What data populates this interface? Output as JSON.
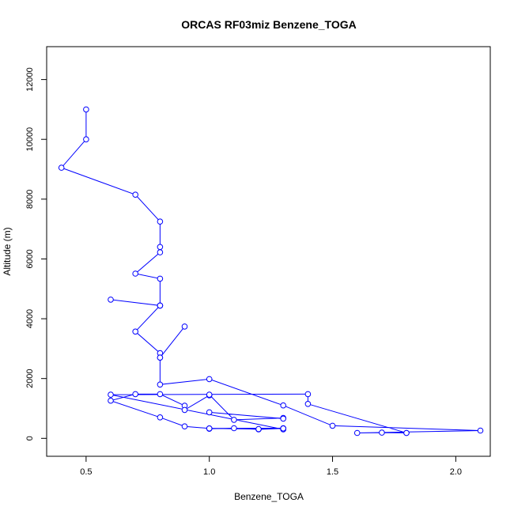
{
  "chart_data": {
    "type": "line",
    "title": "ORCAS RF03miz Benzene_TOGA",
    "xlabel": "Benzene_TOGA",
    "ylabel": "Altitude (m)",
    "xlim": [
      0.34,
      2.14
    ],
    "ylim": [
      -600,
      13100
    ],
    "x_ticks": [
      0.5,
      1.0,
      1.5,
      2.0
    ],
    "x_tick_labels": [
      "0.5",
      "1.0",
      "1.5",
      "2.0"
    ],
    "y_ticks": [
      0,
      2000,
      4000,
      6000,
      8000,
      10000,
      12000
    ],
    "y_tick_labels": [
      "0",
      "2000",
      "4000",
      "6000",
      "8000",
      "10000",
      "12000"
    ],
    "grid": false,
    "series_color": "#0000ff",
    "marker": "open-circle",
    "series": [
      {
        "x": [
          0.5,
          0.5,
          0.4,
          0.7,
          0.8,
          0.8,
          0.8,
          0.7,
          0.8,
          0.8,
          0.6,
          0.8,
          0.8,
          0.7,
          0.8,
          0.8,
          0.9,
          0.8,
          0.8,
          1.0,
          1.3,
          1.5,
          2.1,
          1.6,
          1.7,
          1.8,
          1.8,
          1.4,
          1.4,
          0.6,
          1.3,
          1.3,
          1.2,
          1.1,
          1.0,
          1.0,
          1.3,
          1.3,
          1.2,
          1.0,
          0.9,
          0.8,
          0.6,
          0.7,
          0.8,
          0.9,
          0.9,
          1.0,
          1.0,
          1.1,
          1.3,
          1.3,
          1.0
        ],
        "y": [
          11000,
          10000,
          9050,
          8150,
          7250,
          6400,
          6220,
          5510,
          5340,
          4440,
          4640,
          4440,
          4440,
          3570,
          2850,
          2700,
          3740,
          2700,
          1800,
          1980,
          1100,
          420,
          260,
          180,
          190,
          180,
          180,
          1150,
          1480,
          1460,
          300,
          330,
          300,
          340,
          320,
          330,
          340,
          330,
          310,
          330,
          400,
          700,
          1260,
          1480,
          1480,
          1090,
          950,
          1440,
          1460,
          620,
          680,
          660,
          870
        ]
      }
    ]
  }
}
